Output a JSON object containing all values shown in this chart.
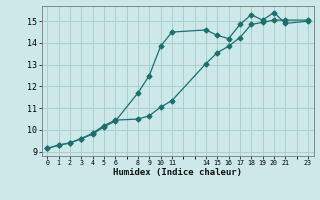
{
  "xlabel": "Humidex (Indice chaleur)",
  "bg_color": "#cce8e8",
  "line_color": "#1a7070",
  "grid_color": "#aacece",
  "xlim": [
    -0.5,
    23.5
  ],
  "ylim": [
    8.8,
    15.7
  ],
  "yticks": [
    9,
    10,
    11,
    12,
    13,
    14,
    15
  ],
  "xticks": [
    0,
    1,
    2,
    3,
    4,
    5,
    6,
    8,
    9,
    10,
    11,
    14,
    15,
    16,
    17,
    18,
    19,
    20,
    21,
    23
  ],
  "series1_x": [
    0,
    1,
    2,
    3,
    4,
    5,
    6,
    8,
    9,
    10,
    11,
    14,
    15,
    16,
    17,
    18,
    19,
    20,
    21,
    23
  ],
  "series1_y": [
    9.15,
    9.3,
    9.4,
    9.6,
    9.8,
    10.15,
    10.4,
    11.7,
    12.5,
    13.85,
    14.5,
    14.6,
    14.35,
    14.2,
    14.85,
    15.3,
    15.05,
    15.4,
    14.9,
    15.0
  ],
  "series2_x": [
    0,
    1,
    2,
    3,
    4,
    5,
    6,
    8,
    9,
    10,
    11,
    14,
    15,
    16,
    17,
    18,
    19,
    20,
    21,
    23
  ],
  "series2_y": [
    9.15,
    9.3,
    9.4,
    9.6,
    9.85,
    10.2,
    10.45,
    10.5,
    10.65,
    11.05,
    11.35,
    13.05,
    13.55,
    13.85,
    14.25,
    14.85,
    14.95,
    15.05,
    15.05,
    15.05
  ]
}
